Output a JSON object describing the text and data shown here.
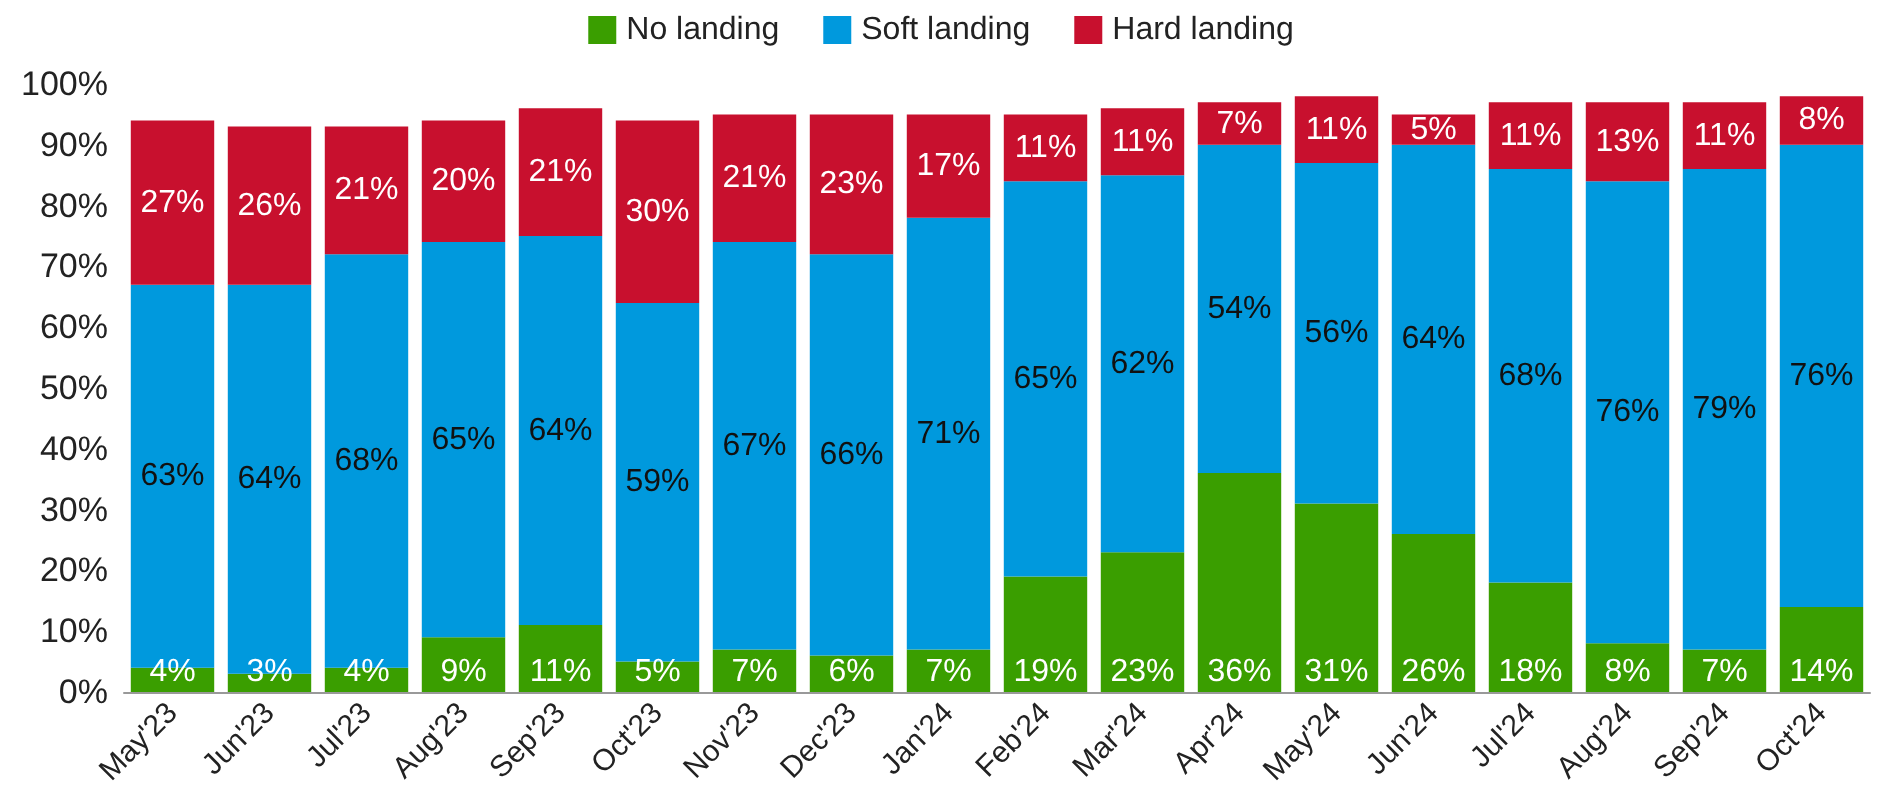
{
  "chart_data": {
    "type": "bar",
    "stacked": true,
    "legend": "top",
    "grid": false,
    "categories": [
      "May'23",
      "Jun'23",
      "Jul'23",
      "Aug'23",
      "Sep'23",
      "Oct'23",
      "Nov'23",
      "Dec'23",
      "Jan'24",
      "Feb'24",
      "Mar'24",
      "Apr'24",
      "May'24",
      "Jun'24",
      "Jul'24",
      "Aug'24",
      "Sep'24",
      "Oct'24"
    ],
    "ylim": [
      0,
      100
    ],
    "yticks": [
      {
        "value": 0,
        "label": "0%"
      },
      {
        "value": 10,
        "label": "10%"
      },
      {
        "value": 20,
        "label": "20%"
      },
      {
        "value": 30,
        "label": "30%"
      },
      {
        "value": 40,
        "label": "40%"
      },
      {
        "value": 50,
        "label": "50%"
      },
      {
        "value": 60,
        "label": "60%"
      },
      {
        "value": 70,
        "label": "70%"
      },
      {
        "value": 80,
        "label": "80%"
      },
      {
        "value": 90,
        "label": "90%"
      },
      {
        "value": 100,
        "label": "100%"
      }
    ],
    "series": [
      {
        "name": "No landing",
        "color": "#3a9e00",
        "values": [
          4,
          3,
          4,
          9,
          11,
          5,
          7,
          6,
          7,
          19,
          23,
          36,
          31,
          26,
          18,
          8,
          7,
          14
        ],
        "value_labels": [
          "4%",
          "3%",
          "4%",
          "9%",
          "11%",
          "5%",
          "7%",
          "6%",
          "7%",
          "19%",
          "23%",
          "36%",
          "31%",
          "26%",
          "18%",
          "8%",
          "7%",
          "14%"
        ]
      },
      {
        "name": "Soft landing",
        "color": "#0099dd",
        "values": [
          63,
          64,
          68,
          65,
          64,
          59,
          67,
          66,
          71,
          65,
          62,
          54,
          56,
          64,
          68,
          76,
          79,
          76
        ],
        "value_labels": [
          "63%",
          "64%",
          "68%",
          "65%",
          "64%",
          "59%",
          "67%",
          "66%",
          "71%",
          "65%",
          "62%",
          "54%",
          "56%",
          "64%",
          "68%",
          "76%",
          "79%",
          "76%"
        ]
      },
      {
        "name": "Hard landing",
        "color": "#c8102e",
        "values": [
          27,
          26,
          21,
          20,
          21,
          30,
          21,
          23,
          17,
          11,
          11,
          7,
          11,
          5,
          11,
          13,
          11,
          8
        ],
        "value_labels": [
          "27%",
          "26%",
          "21%",
          "20%",
          "21%",
          "30%",
          "21%",
          "23%",
          "17%",
          "11%",
          "11%",
          "7%",
          "11%",
          "5%",
          "11%",
          "13%",
          "11%",
          "8%"
        ]
      }
    ]
  }
}
